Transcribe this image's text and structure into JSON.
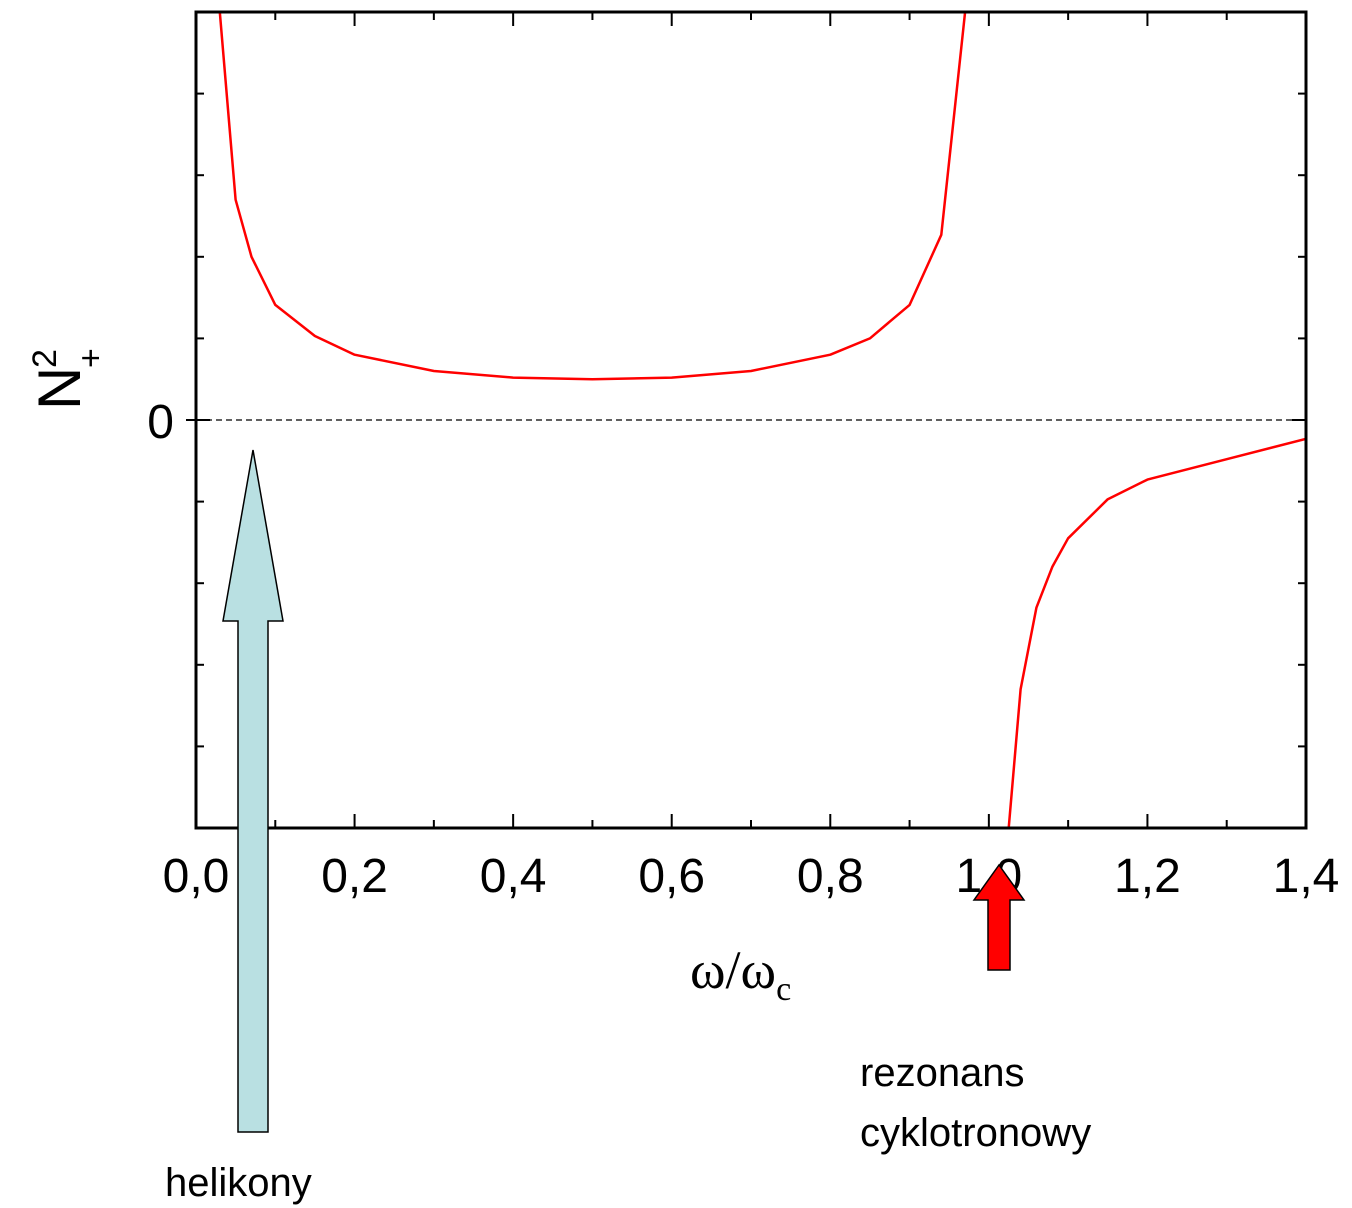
{
  "chart_data": {
    "type": "line",
    "xlabel": {
      "main": "ω/ω",
      "sub": "c"
    },
    "ylabel": {
      "main": "N",
      "sup": "2",
      "sub": "+"
    },
    "xlim": [
      0.0,
      1.4
    ],
    "ylim": [
      -5,
      5
    ],
    "x_ticks": [
      0.0,
      0.2,
      0.4,
      0.6,
      0.8,
      1.0,
      1.2,
      1.4
    ],
    "x_tick_labels": [
      "0,0",
      "0,2",
      "0,4",
      "0,6",
      "0,8",
      "1,0",
      "1,2",
      "1,4"
    ],
    "y_ticks": [
      0
    ],
    "y_tick_labels": [
      "0"
    ],
    "grid": false,
    "zero_line": {
      "y": 0,
      "style": "dashed"
    },
    "series": [
      {
        "color": "#ff0000",
        "segments": [
          {
            "x": [
              0.03,
              0.05,
              0.07,
              0.1,
              0.15,
              0.2,
              0.3,
              0.4,
              0.5,
              0.6,
              0.7,
              0.8,
              0.85,
              0.9,
              0.94,
              0.97
            ],
            "y": [
              5.0,
              2.7,
              2.0,
              1.41,
              1.03,
              0.8,
              0.6,
              0.52,
              0.5,
              0.52,
              0.6,
              0.8,
              1.0,
              1.41,
              2.27,
              5.0
            ]
          },
          {
            "x": [
              1.025,
              1.04,
              1.06,
              1.08,
              1.1,
              1.15,
              1.2,
              1.3,
              1.4
            ],
            "y": [
              -5.0,
              -3.3,
              -2.3,
              -1.8,
              -1.45,
              -0.97,
              -0.73,
              -0.48,
              -0.23
            ]
          }
        ]
      }
    ],
    "annotations": [
      {
        "text": "helikony",
        "x": 0.07,
        "arrow_color": "#b9e0e2"
      },
      {
        "lines": [
          "rezonans",
          "cyklotronowy"
        ],
        "x": 1.02,
        "arrow_color": "#ff0000"
      }
    ]
  }
}
